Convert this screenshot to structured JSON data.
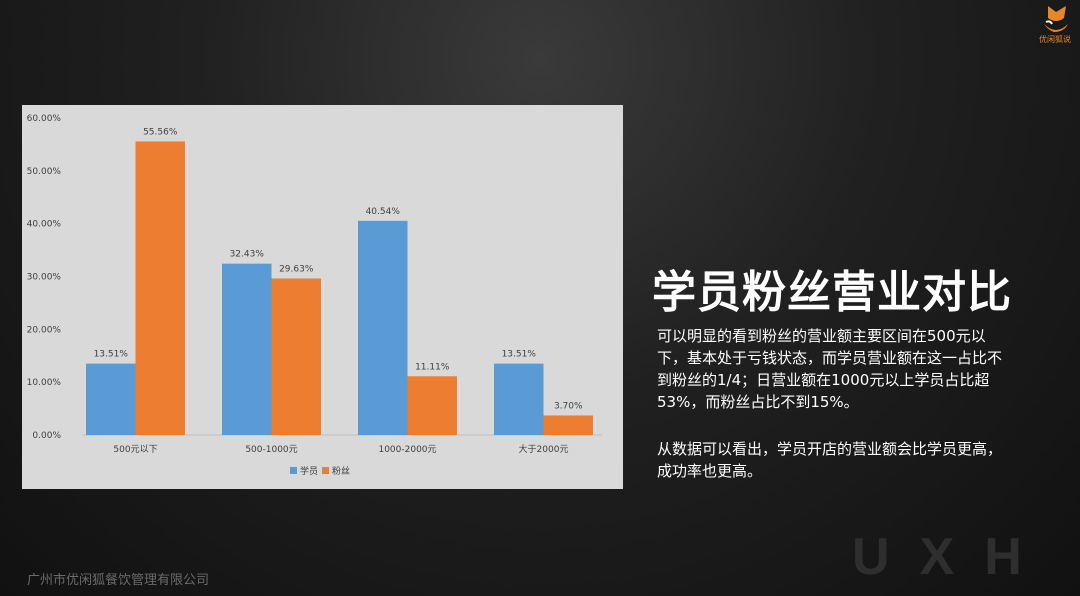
{
  "slide": {
    "title": "学员粉丝营业对比",
    "paragraph1": "可以明显的看到粉丝的营业额主要区间在500元以下，基本处于亏钱状态，而学员营业额在这一占比不到粉丝的1/4；日营业额在1000元以上学员占比超53%，而粉丝占比不到15%。",
    "paragraph2": "从数据可以看出，学员开店的营业额会比学员更高，成功率也更高。",
    "footer": "广州市优闲狐餐饮管理有限公司",
    "watermark": "UXH",
    "logo_text": "优闲狐说"
  },
  "chart_data": {
    "type": "bar",
    "categories": [
      "500元以下",
      "500-1000元",
      "1000-2000元",
      "大于2000元"
    ],
    "series": [
      {
        "name": "学员",
        "values": [
          13.51,
          32.43,
          40.54,
          13.51
        ],
        "labels": [
          "13.51%",
          "32.43%",
          "40.54%",
          "13.51%"
        ],
        "color": "#5b9bd5"
      },
      {
        "name": "粉丝",
        "values": [
          55.56,
          29.63,
          11.11,
          3.7
        ],
        "labels": [
          "55.56%",
          "29.63%",
          "11.11%",
          "3.70%"
        ],
        "color": "#ed7d31"
      }
    ],
    "ylim": [
      0,
      60
    ],
    "yticks": [
      "0.00%",
      "10.00%",
      "20.00%",
      "30.00%",
      "40.00%",
      "50.00%",
      "60.00%"
    ],
    "grid": false,
    "legend": "bottom"
  }
}
